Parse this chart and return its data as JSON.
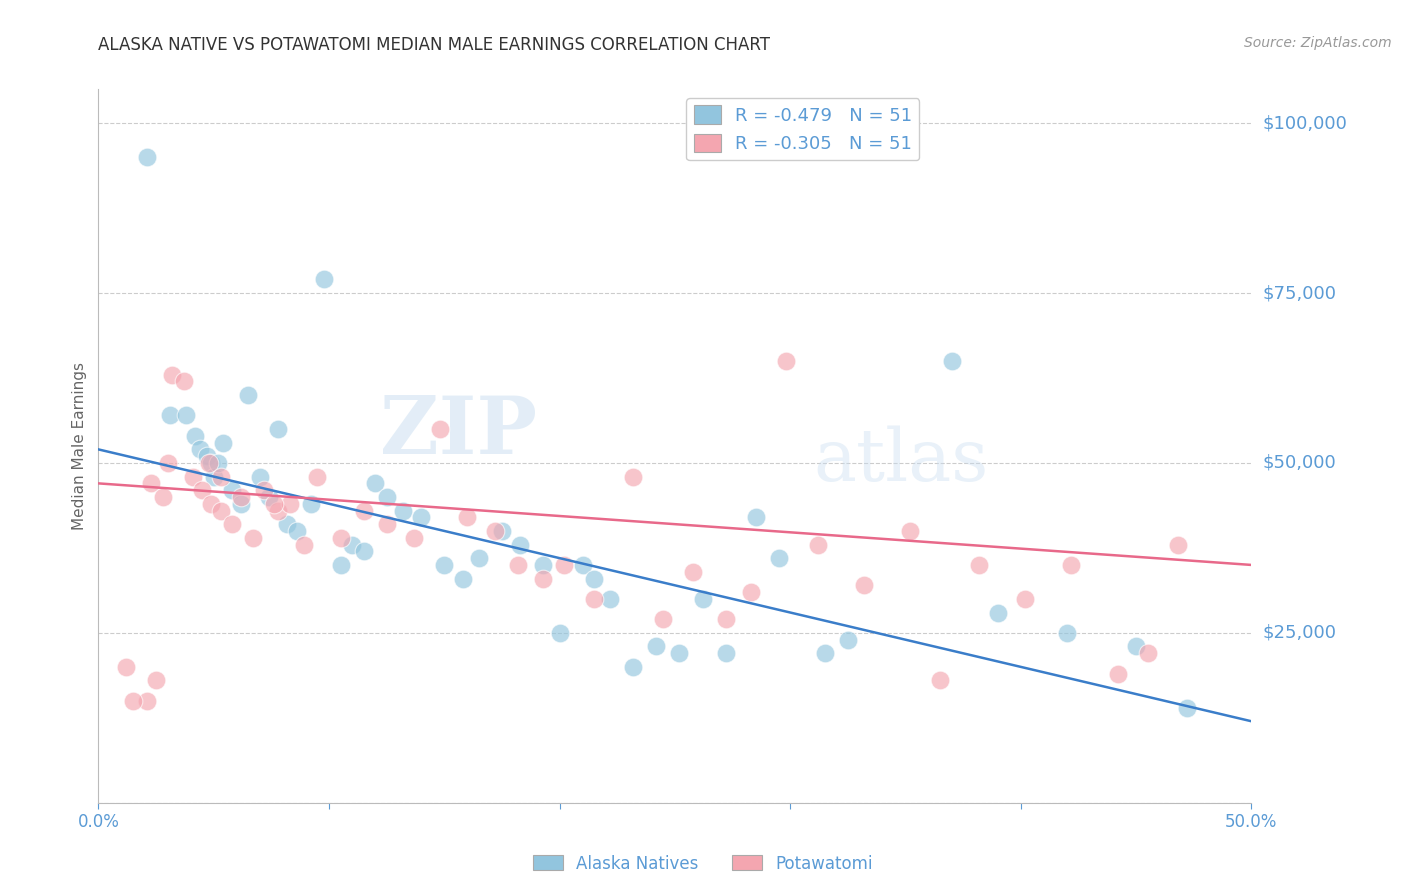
{
  "title": "ALASKA NATIVE VS POTAWATOMI MEDIAN MALE EARNINGS CORRELATION CHART",
  "source": "Source: ZipAtlas.com",
  "ylabel": "Median Male Earnings",
  "xlim": [
    0.0,
    0.5
  ],
  "ylim": [
    0,
    105000
  ],
  "yticks": [
    0,
    25000,
    50000,
    75000,
    100000
  ],
  "ytick_labels": [
    "",
    "$25,000",
    "$50,000",
    "$75,000",
    "$100,000"
  ],
  "xticks": [
    0.0,
    0.1,
    0.2,
    0.3,
    0.4,
    0.5
  ],
  "xtick_labels": [
    "0.0%",
    "",
    "",
    "",
    "",
    "50.0%"
  ],
  "legend1_r": "-0.479",
  "legend1_n": "51",
  "legend2_r": "-0.305",
  "legend2_n": "51",
  "blue_color": "#92c5de",
  "pink_color": "#f4a6b0",
  "line_blue": "#3a7dc9",
  "line_pink": "#e8698a",
  "watermark_zip": "ZIP",
  "watermark_atlas": "atlas",
  "blue_scatter_x": [
    0.021,
    0.031,
    0.038,
    0.042,
    0.044,
    0.047,
    0.049,
    0.05,
    0.052,
    0.054,
    0.058,
    0.062,
    0.065,
    0.07,
    0.074,
    0.078,
    0.082,
    0.086,
    0.092,
    0.098,
    0.105,
    0.11,
    0.115,
    0.12,
    0.125,
    0.132,
    0.14,
    0.15,
    0.158,
    0.165,
    0.175,
    0.183,
    0.193,
    0.2,
    0.21,
    0.215,
    0.222,
    0.232,
    0.242,
    0.252,
    0.262,
    0.272,
    0.285,
    0.295,
    0.315,
    0.325,
    0.37,
    0.39,
    0.42,
    0.45,
    0.472
  ],
  "blue_scatter_y": [
    95000,
    57000,
    57000,
    54000,
    52000,
    51000,
    50000,
    48000,
    50000,
    53000,
    46000,
    44000,
    60000,
    48000,
    45000,
    55000,
    41000,
    40000,
    44000,
    77000,
    35000,
    38000,
    37000,
    47000,
    45000,
    43000,
    42000,
    35000,
    33000,
    36000,
    40000,
    38000,
    35000,
    25000,
    35000,
    33000,
    30000,
    20000,
    23000,
    22000,
    30000,
    22000,
    42000,
    36000,
    22000,
    24000,
    65000,
    28000,
    25000,
    23000,
    14000
  ],
  "pink_scatter_x": [
    0.023,
    0.028,
    0.032,
    0.037,
    0.041,
    0.045,
    0.049,
    0.053,
    0.058,
    0.062,
    0.067,
    0.072,
    0.078,
    0.083,
    0.089,
    0.095,
    0.105,
    0.115,
    0.125,
    0.137,
    0.148,
    0.16,
    0.172,
    0.182,
    0.193,
    0.202,
    0.215,
    0.232,
    0.245,
    0.258,
    0.272,
    0.283,
    0.298,
    0.312,
    0.332,
    0.352,
    0.365,
    0.382,
    0.402,
    0.422,
    0.442,
    0.455,
    0.468,
    0.021,
    0.025,
    0.03,
    0.048,
    0.053,
    0.076,
    0.012,
    0.015
  ],
  "pink_scatter_y": [
    47000,
    45000,
    63000,
    62000,
    48000,
    46000,
    44000,
    43000,
    41000,
    45000,
    39000,
    46000,
    43000,
    44000,
    38000,
    48000,
    39000,
    43000,
    41000,
    39000,
    55000,
    42000,
    40000,
    35000,
    33000,
    35000,
    30000,
    48000,
    27000,
    34000,
    27000,
    31000,
    65000,
    38000,
    32000,
    40000,
    18000,
    35000,
    30000,
    35000,
    19000,
    22000,
    38000,
    15000,
    18000,
    50000,
    50000,
    48000,
    44000,
    20000,
    15000
  ],
  "blue_line_x": [
    0.0,
    0.5
  ],
  "blue_line_y": [
    52000,
    12000
  ],
  "pink_line_x": [
    0.0,
    0.5
  ],
  "pink_line_y": [
    47000,
    35000
  ],
  "title_color": "#333333",
  "source_color": "#999999",
  "axis_label_color": "#5b9bd5",
  "grid_color": "#cccccc",
  "background_color": "#ffffff"
}
